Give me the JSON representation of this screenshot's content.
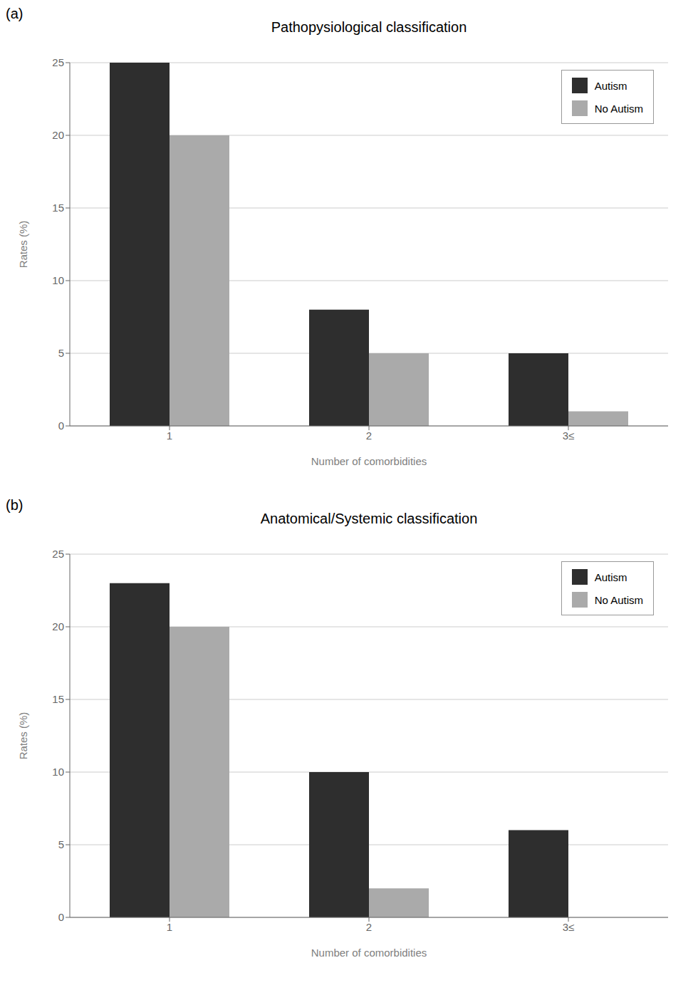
{
  "chart_data": [
    {
      "type": "bar",
      "title": "Pathopysiological classification",
      "annotations": [
        "(a)"
      ],
      "categories": [
        "1",
        "2",
        "3≤"
      ],
      "series": [
        {
          "name": "Autism",
          "color": "#2e2e2e",
          "values": [
            25,
            8,
            5
          ]
        },
        {
          "name": "No Autism",
          "color": "#aaaaaa",
          "values": [
            20,
            5,
            1
          ]
        }
      ],
      "xlabel": "Number of comorbidities",
      "ylabel": "Rates (%)",
      "ylim": [
        0,
        25
      ],
      "yticks": [
        0,
        5,
        10,
        15,
        20,
        25
      ],
      "grid": true,
      "legend": "upper right"
    },
    {
      "type": "bar",
      "title": "Anatomical/Systemic classification",
      "annotations": [
        "(b)"
      ],
      "categories": [
        "1",
        "2",
        "3≤"
      ],
      "series": [
        {
          "name": "Autism",
          "color": "#2e2e2e",
          "values": [
            23,
            10,
            6
          ]
        },
        {
          "name": "No Autism",
          "color": "#aaaaaa",
          "values": [
            20,
            2,
            0
          ]
        }
      ],
      "xlabel": "Number of comorbidities",
      "ylabel": "Rates (%)",
      "ylim": [
        0,
        25
      ],
      "yticks": [
        0,
        5,
        10,
        15,
        20,
        25
      ],
      "grid": true,
      "legend": "upper right"
    }
  ]
}
